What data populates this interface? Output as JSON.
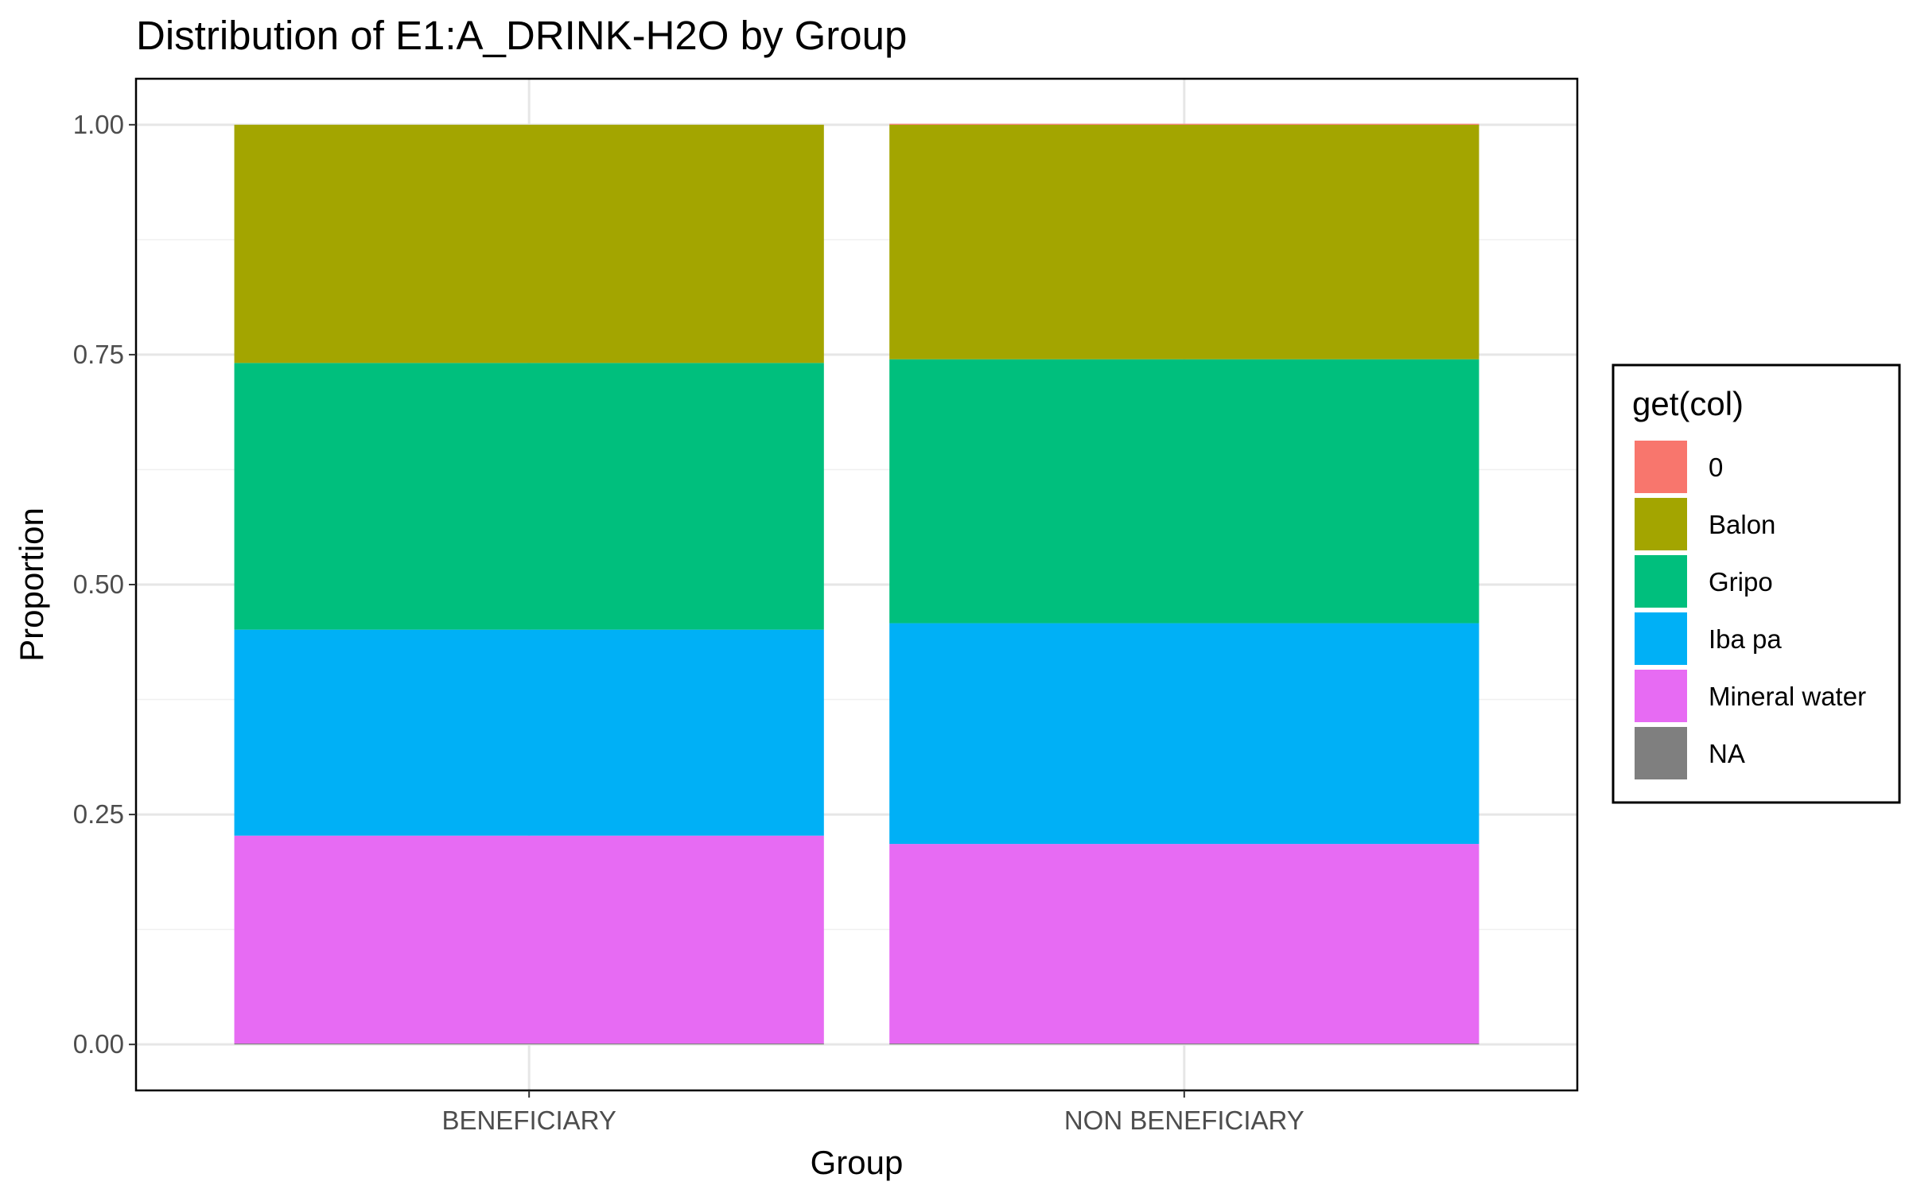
{
  "chart_data": {
    "type": "bar",
    "stacked": true,
    "title": "Distribution of E1:A_DRINK-H2O by Group",
    "xlabel": "Group",
    "ylabel": "Proportion",
    "categories": [
      "BENEFICIARY",
      "NON BENEFICIARY"
    ],
    "ylim": [
      -0.05,
      1.05
    ],
    "yticks": [
      "0.00",
      "0.25",
      "0.50",
      "0.75",
      "1.00"
    ],
    "ytick_values": [
      0,
      0.25,
      0.5,
      0.75,
      1.0
    ],
    "grid": true,
    "legend": {
      "title": "get(col)",
      "position": "right",
      "entries": [
        "0",
        "Balon",
        "Gripo",
        "Iba pa",
        "Mineral water",
        "NA"
      ]
    },
    "colors": {
      "0": "#F8766D",
      "Balon": "#A3A500",
      "Gripo": "#00BF7D",
      "Iba pa": "#00B0F6",
      "Mineral water": "#E76BF3",
      "NA": "#7F7F7F"
    },
    "series": [
      {
        "name": "NA",
        "values": [
          0.001,
          0.001
        ]
      },
      {
        "name": "Mineral water",
        "values": [
          0.226,
          0.217
        ]
      },
      {
        "name": "Iba pa",
        "values": [
          0.224,
          0.24
        ]
      },
      {
        "name": "Gripo",
        "values": [
          0.29,
          0.287
        ]
      },
      {
        "name": "Balon",
        "values": [
          0.259,
          0.255
        ]
      },
      {
        "name": "0",
        "values": [
          0.0,
          0.001
        ]
      }
    ]
  }
}
